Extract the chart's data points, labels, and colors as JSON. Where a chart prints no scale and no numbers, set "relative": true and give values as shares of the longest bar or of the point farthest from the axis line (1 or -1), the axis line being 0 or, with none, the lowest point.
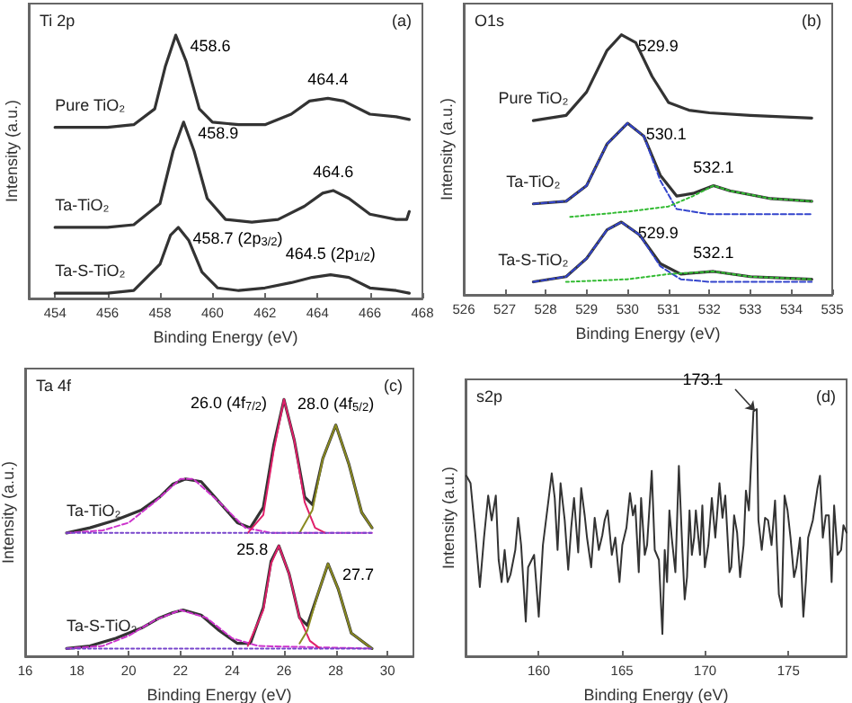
{
  "chart_data": [
    {
      "type": "line",
      "relative": true,
      "title": "Ti 2p",
      "xlabel": "Binding Energy (eV)",
      "ylabel": "Intensity (a.u.)",
      "xlim": [
        453,
        468
      ],
      "xticks": [
        454,
        456,
        458,
        460,
        462,
        464,
        466,
        468
      ],
      "annotations": [
        "(a)",
        {
          "text": "458.6",
          "x": 458.6,
          "y": 1
        },
        {
          "text": "464.4",
          "x": 464.4,
          "y": 0.76
        },
        {
          "text": "458.9",
          "x": 458.9,
          "y": 0.67
        },
        {
          "text": "464.6",
          "x": 464.6,
          "y": 0.41
        },
        {
          "text": "458.7 (2p$_{3/2}$)",
          "x": 458.7,
          "y": 0.27
        },
        {
          "text": "464.5 (2p$_{1/2}$)",
          "x": 464.5,
          "y": 0.09
        }
      ],
      "series": [
        {
          "name": "Pure TiO₂",
          "color": "#333333",
          "x": [
            454,
            456,
            457,
            457.8,
            458.2,
            458.6,
            459,
            459.5,
            460,
            461,
            462,
            463,
            463.7,
            464.4,
            465,
            466,
            467,
            467.5
          ],
          "values": [
            0.65,
            0.65,
            0.66,
            0.72,
            0.88,
            1,
            0.9,
            0.72,
            0.67,
            0.66,
            0.66,
            0.7,
            0.75,
            0.76,
            0.75,
            0.7,
            0.69,
            0.68
          ]
        },
        {
          "name": "Ta-TiO₂",
          "color": "#333333",
          "x": [
            454,
            456,
            457,
            458,
            458.5,
            458.9,
            459.3,
            459.8,
            460.5,
            461.5,
            462.5,
            463.5,
            464.2,
            464.6,
            465.2,
            466,
            467,
            467.4,
            467.5
          ],
          "values": [
            0.27,
            0.27,
            0.28,
            0.36,
            0.56,
            0.67,
            0.56,
            0.38,
            0.3,
            0.29,
            0.3,
            0.35,
            0.4,
            0.41,
            0.38,
            0.32,
            0.3,
            0.3,
            0.33
          ]
        },
        {
          "name": "Ta-S-TiO₂",
          "color": "#333333",
          "x": [
            454,
            456,
            457,
            458,
            458.4,
            458.7,
            459.1,
            459.6,
            460.2,
            461,
            462,
            463,
            463.8,
            464.5,
            465.2,
            466,
            467,
            467.5
          ],
          "values": [
            0.02,
            0.02,
            0.03,
            0.13,
            0.24,
            0.27,
            0.22,
            0.1,
            0.04,
            0.03,
            0.04,
            0.06,
            0.08,
            0.09,
            0.08,
            0.04,
            0.03,
            0.02
          ]
        }
      ]
    },
    {
      "type": "line",
      "relative": true,
      "title": "O1s",
      "xlabel": "Binding Energy (eV)",
      "ylabel": "Intensity (a.u.)",
      "xlim": [
        526,
        535
      ],
      "xticks": [
        526,
        527,
        528,
        529,
        530,
        531,
        532,
        533,
        534,
        535
      ],
      "annotations": [
        "(b)",
        {
          "text": "529.9",
          "x": 529.9,
          "y": 1
        },
        {
          "text": "530.1",
          "x": 530.1,
          "y": 0.66
        },
        {
          "text": "532.1",
          "x": 532.1,
          "y": 0.42
        },
        {
          "text": "529.9",
          "x": 529.9,
          "y": 0.28
        },
        {
          "text": "532.1",
          "x": 532.1,
          "y": 0.09
        }
      ],
      "series": [
        {
          "name": "Pure TiO₂",
          "color": "#333333",
          "x": [
            527.7,
            528.5,
            529,
            529.5,
            529.85,
            530.2,
            530.6,
            531,
            531.5,
            532,
            533,
            534.5
          ],
          "values": [
            0.67,
            0.69,
            0.78,
            0.94,
            1,
            0.97,
            0.84,
            0.74,
            0.71,
            0.7,
            0.69,
            0.68
          ]
        },
        {
          "name": "Ta-TiO₂",
          "color": "#333333",
          "x": [
            527.7,
            528.5,
            529,
            529.5,
            530,
            530.4,
            530.8,
            531.2,
            531.6,
            532.1,
            532.5,
            533.5,
            534.5
          ],
          "values": [
            0.35,
            0.36,
            0.42,
            0.58,
            0.66,
            0.61,
            0.46,
            0.38,
            0.39,
            0.42,
            0.4,
            0.37,
            0.36
          ]
        },
        {
          "color": "#3344cc",
          "line_style": "dashed",
          "x": [
            527.7,
            528.5,
            529,
            529.5,
            530,
            530.4,
            530.8,
            531.2,
            532,
            534.5
          ],
          "values": [
            0.35,
            0.36,
            0.42,
            0.58,
            0.66,
            0.61,
            0.44,
            0.33,
            0.31,
            0.31
          ]
        },
        {
          "color": "#33bb33",
          "line_style": "dotted",
          "x": [
            528.6,
            530,
            531,
            531.6,
            532.1,
            532.5,
            533.5,
            534.5
          ],
          "values": [
            0.3,
            0.32,
            0.34,
            0.38,
            0.42,
            0.4,
            0.37,
            0.36
          ]
        },
        {
          "name": "Ta-S-TiO₂",
          "color": "#333333",
          "x": [
            527.7,
            528.5,
            529,
            529.5,
            529.85,
            530.3,
            530.8,
            531.3,
            532.1,
            533,
            534.5
          ],
          "values": [
            0.05,
            0.07,
            0.14,
            0.25,
            0.28,
            0.23,
            0.12,
            0.08,
            0.09,
            0.07,
            0.06
          ]
        },
        {
          "color": "#3344cc",
          "line_style": "dashed",
          "x": [
            527.7,
            528.5,
            529,
            529.5,
            529.85,
            530.3,
            530.8,
            531.3,
            532,
            534.5
          ],
          "values": [
            0.05,
            0.07,
            0.14,
            0.25,
            0.28,
            0.23,
            0.11,
            0.06,
            0.05,
            0.05
          ]
        },
        {
          "color": "#33bb33",
          "line_style": "dotted",
          "x": [
            528.5,
            530,
            531,
            532.1,
            533,
            534.5
          ],
          "values": [
            0.05,
            0.06,
            0.08,
            0.09,
            0.07,
            0.06
          ]
        }
      ]
    },
    {
      "type": "line",
      "relative": true,
      "title": "Ta 4f",
      "xlabel": "Binding Energy (eV)",
      "ylabel": "Intensity (a.u.)",
      "xlim": [
        16,
        31
      ],
      "xticks": [
        16,
        18,
        20,
        22,
        24,
        26,
        28,
        30
      ],
      "annotations": [
        "(c)",
        {
          "text": "26.0 (4f$_{7/2}$)",
          "x": 26,
          "y": 1
        },
        {
          "text": "28.0 (4f$_{5/2}$)",
          "x": 28,
          "y": 0.9
        },
        {
          "text": "25.8",
          "x": 25.8,
          "y": 0.43
        },
        {
          "text": "27.7",
          "x": 27.7,
          "y": 0.36
        }
      ],
      "series": [
        {
          "name": "Ta-TiO₂",
          "color": "#333333",
          "x": [
            17.6,
            18.5,
            19.5,
            20.5,
            21.2,
            21.7,
            22.2,
            22.8,
            23.5,
            24.2,
            24.7,
            25.2,
            25.6,
            26,
            26.4,
            26.8,
            27.1,
            27.5,
            28,
            28.5,
            29,
            29.4
          ],
          "values": [
            0.48,
            0.5,
            0.53,
            0.57,
            0.62,
            0.67,
            0.69,
            0.68,
            0.6,
            0.52,
            0.5,
            0.58,
            0.82,
            1,
            0.84,
            0.62,
            0.59,
            0.77,
            0.9,
            0.75,
            0.56,
            0.5
          ]
        },
        {
          "color": "#cc33cc",
          "line_style": "dashed",
          "x": [
            17.6,
            19,
            20,
            21,
            22,
            22.5,
            23.5,
            24.5,
            25.5,
            29.4
          ],
          "values": [
            0.48,
            0.49,
            0.52,
            0.6,
            0.69,
            0.69,
            0.6,
            0.5,
            0.48,
            0.48
          ]
        },
        {
          "color": "#e0206a",
          "x": [
            24.6,
            25.2,
            25.6,
            26,
            26.4,
            26.8,
            27.2,
            27.6
          ],
          "values": [
            0.48,
            0.55,
            0.8,
            1,
            0.84,
            0.6,
            0.5,
            0.48
          ]
        },
        {
          "color": "#8a8a20",
          "x": [
            26.6,
            27.1,
            27.5,
            28,
            28.5,
            29,
            29.4
          ],
          "values": [
            0.48,
            0.57,
            0.77,
            0.9,
            0.75,
            0.56,
            0.5
          ]
        },
        {
          "color": "#7744cc",
          "line_style": "dotted",
          "x": [
            17.6,
            29.4
          ],
          "values": [
            0.48,
            0.48
          ]
        },
        {
          "name": "Ta-S-TiO₂",
          "color": "#333333",
          "x": [
            17.6,
            18.5,
            19.5,
            20.5,
            21.2,
            21.7,
            22.1,
            22.8,
            23.5,
            24.2,
            24.7,
            25.2,
            25.5,
            25.8,
            26.2,
            26.6,
            26.9,
            27.3,
            27.7,
            28.1,
            28.6,
            29.4
          ],
          "values": [
            0.03,
            0.04,
            0.07,
            0.11,
            0.15,
            0.17,
            0.18,
            0.16,
            0.1,
            0.05,
            0.05,
            0.19,
            0.37,
            0.43,
            0.32,
            0.15,
            0.12,
            0.24,
            0.36,
            0.26,
            0.09,
            0.03
          ]
        },
        {
          "color": "#cc33cc",
          "line_style": "dashed",
          "x": [
            17.6,
            19,
            20,
            21,
            22,
            23,
            24,
            25,
            29.4
          ],
          "values": [
            0.03,
            0.04,
            0.08,
            0.14,
            0.18,
            0.15,
            0.07,
            0.04,
            0.03
          ]
        },
        {
          "color": "#e0206a",
          "x": [
            24.6,
            25.2,
            25.5,
            25.8,
            26.2,
            26.6,
            27,
            27.4
          ],
          "values": [
            0.04,
            0.18,
            0.36,
            0.43,
            0.32,
            0.15,
            0.06,
            0.03
          ]
        },
        {
          "color": "#8a8a20",
          "x": [
            26.6,
            26.9,
            27.3,
            27.7,
            28.1,
            28.6,
            29.4
          ],
          "values": [
            0.05,
            0.1,
            0.24,
            0.36,
            0.26,
            0.09,
            0.03
          ]
        },
        {
          "color": "#7744cc",
          "line_style": "dotted",
          "x": [
            17.6,
            29.4
          ],
          "values": [
            0.03,
            0.03
          ]
        }
      ]
    },
    {
      "type": "line",
      "relative": true,
      "title": "s2p",
      "xlabel": "Binding Energy (eV)",
      "ylabel": "Intensity (a.u.)",
      "xlim": [
        155.6,
        178.5
      ],
      "xticks": [
        160,
        165,
        170,
        175
      ],
      "annotations": [
        "(d)",
        {
          "text": "173.1",
          "x": 173.1,
          "y": 1
        }
      ],
      "series": [
        {
          "color": "#333333",
          "x": [
            155.65,
            155.9,
            156.18,
            156.46,
            156.71,
            156.96,
            157.17,
            157.42,
            157.59,
            157.77,
            157.95,
            158.13,
            158.3,
            158.59,
            158.76,
            158.94,
            159.22,
            159.36,
            159.72,
            160,
            160.25,
            160.6,
            160.78,
            160.96,
            161.13,
            161.31,
            161.56,
            161.77,
            161.95,
            162.12,
            162.37,
            162.55,
            162.76,
            162.9,
            163.15,
            163.36,
            163.61,
            163.82,
            163.96,
            164.14,
            164.39,
            164.6,
            164.85,
            165.02,
            165.27,
            165.48,
            165.66,
            165.8,
            166.01,
            166.15,
            166.37,
            166.51,
            166.79,
            166.97,
            167.22,
            167.43,
            167.57,
            167.71,
            167.85,
            167.99,
            168.21,
            168.42,
            168.63,
            168.77,
            168.91,
            169.06,
            169.2,
            169.34,
            169.44,
            169.69,
            169.83,
            169.98,
            170.19,
            170.4,
            170.61,
            170.86,
            171.04,
            171.21,
            171.46,
            171.57,
            171.74,
            171.92,
            172.1,
            172.31,
            172.45,
            172.63,
            172.9,
            173.1,
            173.2,
            173.4,
            173.6,
            173.78,
            173.99,
            174.2,
            174.43,
            174.6,
            174.77,
            174.95,
            175.13,
            175.34,
            175.48,
            175.7,
            175.9,
            176.05,
            176.19,
            176.47,
            176.75,
            176.9,
            177.07,
            177.25,
            177.43,
            177.6,
            177.75,
            177.96,
            178.17,
            178.31,
            178.5
          ],
          "values": [
            0.73,
            0.7,
            0.5,
            0.28,
            0.48,
            0.65,
            0.55,
            0.65,
            0.39,
            0.3,
            0.43,
            0.3,
            0.33,
            0.43,
            0.56,
            0.45,
            0.14,
            0.36,
            0.41,
            0.16,
            0.45,
            0.64,
            0.74,
            0.64,
            0.43,
            0.7,
            0.55,
            0.35,
            0.52,
            0.64,
            0.42,
            0.68,
            0.57,
            0.48,
            0.36,
            0.56,
            0.43,
            0.49,
            0.55,
            0.59,
            0.41,
            0.48,
            0.3,
            0.45,
            0.52,
            0.66,
            0.57,
            0.61,
            0.34,
            0.64,
            0.41,
            0.45,
            0.75,
            0.43,
            0.39,
            0.09,
            0.43,
            0.3,
            0.59,
            0.48,
            0.34,
            0.77,
            0.43,
            0.23,
            0.32,
            0.59,
            0.41,
            0.48,
            0.59,
            0.41,
            0.61,
            0.36,
            0.45,
            0.64,
            0.48,
            0.7,
            0.56,
            0.65,
            0.34,
            0.36,
            0.57,
            0.5,
            0.32,
            0.45,
            0.67,
            0.59,
            0.99,
            1,
            0.55,
            0.43,
            0.56,
            0.55,
            0.45,
            0.63,
            0.25,
            0.2,
            0.65,
            0.59,
            0.48,
            0.32,
            0.36,
            0.48,
            0.16,
            0.3,
            0.48,
            0.55,
            0.68,
            0.73,
            0.48,
            0.57,
            0.57,
            0.3,
            0.61,
            0.41,
            0.43,
            0.53,
            0.5
          ]
        }
      ]
    }
  ]
}
